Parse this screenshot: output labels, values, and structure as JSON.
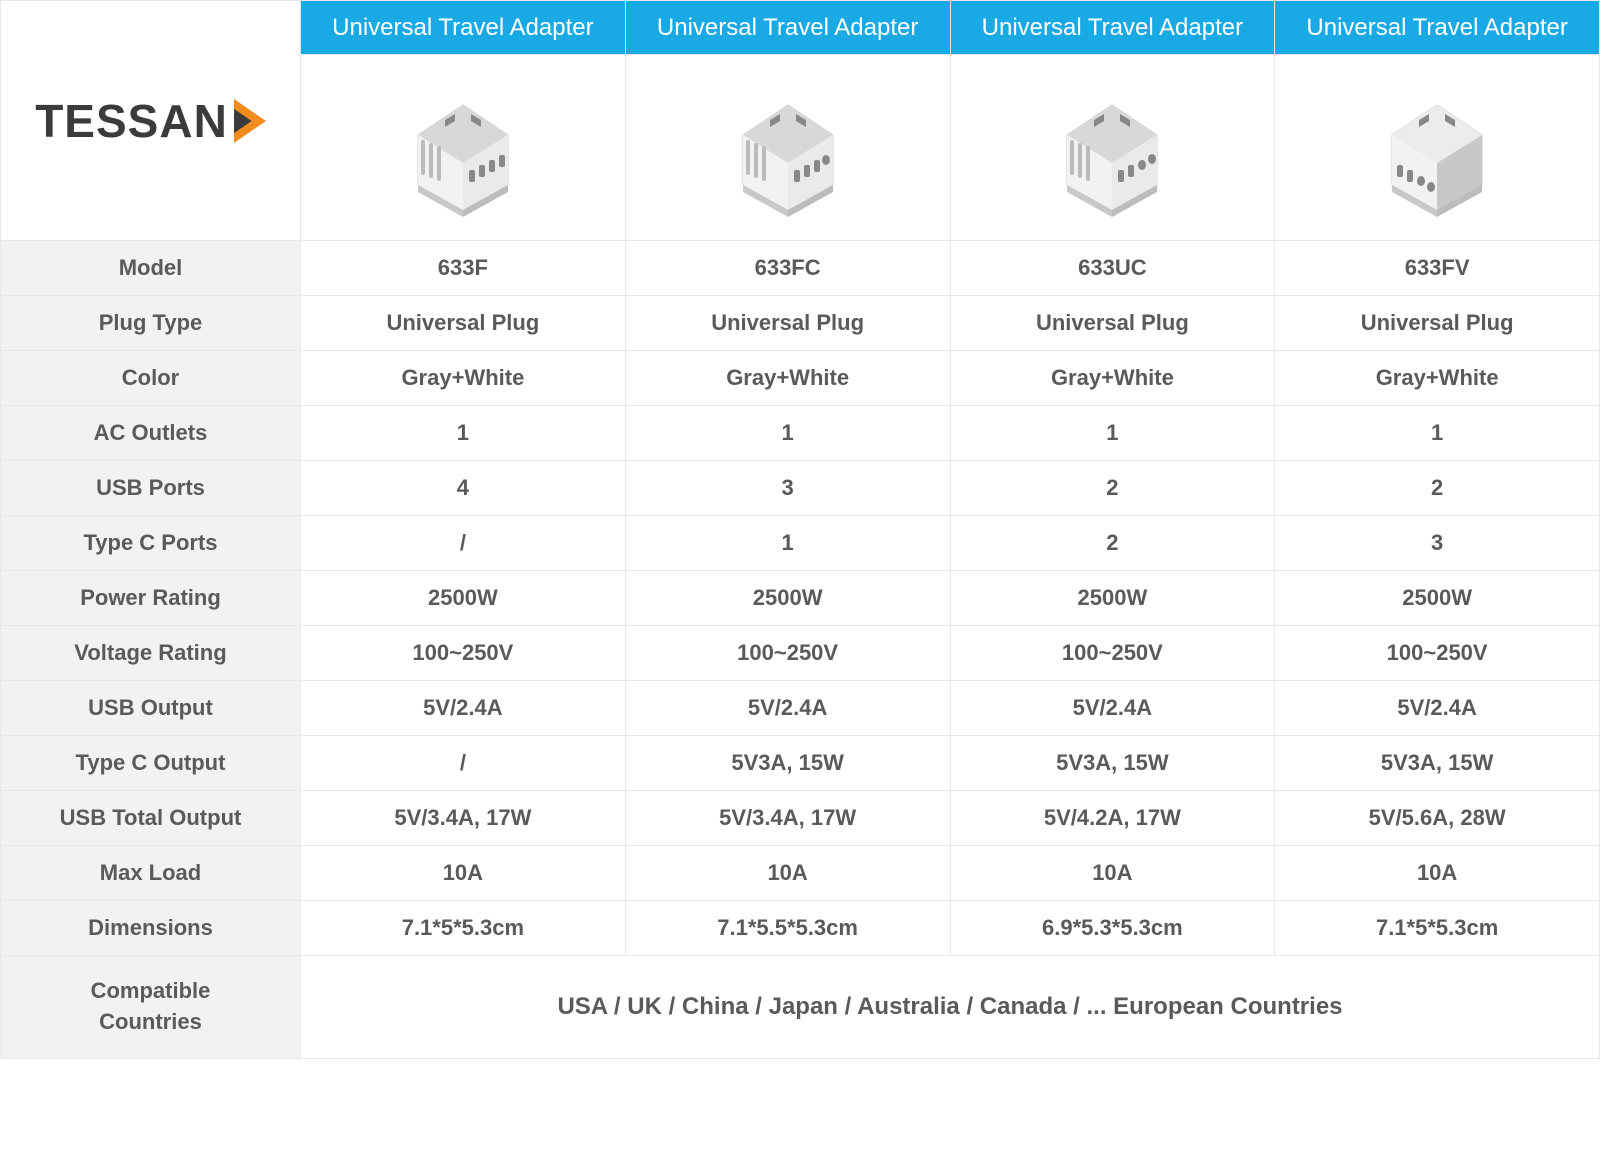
{
  "brand": "TESSAN",
  "columns": [
    {
      "header": "Universal Travel Adapter"
    },
    {
      "header": "Universal Travel Adapter"
    },
    {
      "header": "Universal Travel Adapter"
    },
    {
      "header": "Universal Travel Adapter"
    }
  ],
  "rows": [
    {
      "label": "Model",
      "values": [
        "633F",
        "633FC",
        "633UC",
        "633FV"
      ]
    },
    {
      "label": "Plug Type",
      "values": [
        "Universal Plug",
        "Universal Plug",
        "Universal Plug",
        "Universal Plug"
      ]
    },
    {
      "label": "Color",
      "values": [
        "Gray+White",
        "Gray+White",
        "Gray+White",
        "Gray+White"
      ]
    },
    {
      "label": "AC Outlets",
      "values": [
        "1",
        "1",
        "1",
        "1"
      ]
    },
    {
      "label": "USB Ports",
      "values": [
        "4",
        "3",
        "2",
        "2"
      ]
    },
    {
      "label": "Type C Ports",
      "values": [
        "/",
        "1",
        "2",
        "3"
      ]
    },
    {
      "label": "Power Rating",
      "values": [
        "2500W",
        "2500W",
        "2500W",
        "2500W"
      ]
    },
    {
      "label": "Voltage Rating",
      "values": [
        "100~250V",
        "100~250V",
        "100~250V",
        "100~250V"
      ]
    },
    {
      "label": "USB Output",
      "values": [
        "5V/2.4A",
        "5V/2.4A",
        "5V/2.4A",
        "5V/2.4A"
      ]
    },
    {
      "label": "Type C Output",
      "values": [
        "/",
        "5V3A, 15W",
        "5V3A, 15W",
        "5V3A, 15W"
      ]
    },
    {
      "label": "USB Total Output",
      "values": [
        "5V/3.4A, 17W",
        "5V/3.4A, 17W",
        "5V/4.2A, 17W",
        "5V/5.6A, 28W"
      ]
    },
    {
      "label": "Max Load",
      "values": [
        "10A",
        "10A",
        "10A",
        "10A"
      ]
    },
    {
      "label": "Dimensions",
      "values": [
        "7.1*5*5.3cm",
        "7.1*5.5*5.3cm",
        "6.9*5.3*5.3cm",
        "7.1*5*5.3cm"
      ]
    }
  ],
  "footer": {
    "label_line1": "Compatible",
    "label_line2": "Countries",
    "value": "USA / UK / China / Japan / Australia / Canada / ... European Countries"
  },
  "colors": {
    "header_bg": "#19a9e5",
    "header_text": "#ffffff",
    "label_bg": "#f2f2f2",
    "data_bg": "#ffffff",
    "text_color": "#5a5a5a",
    "border_color": "#e8e8e8",
    "logo_accent": "#f28c1e"
  }
}
